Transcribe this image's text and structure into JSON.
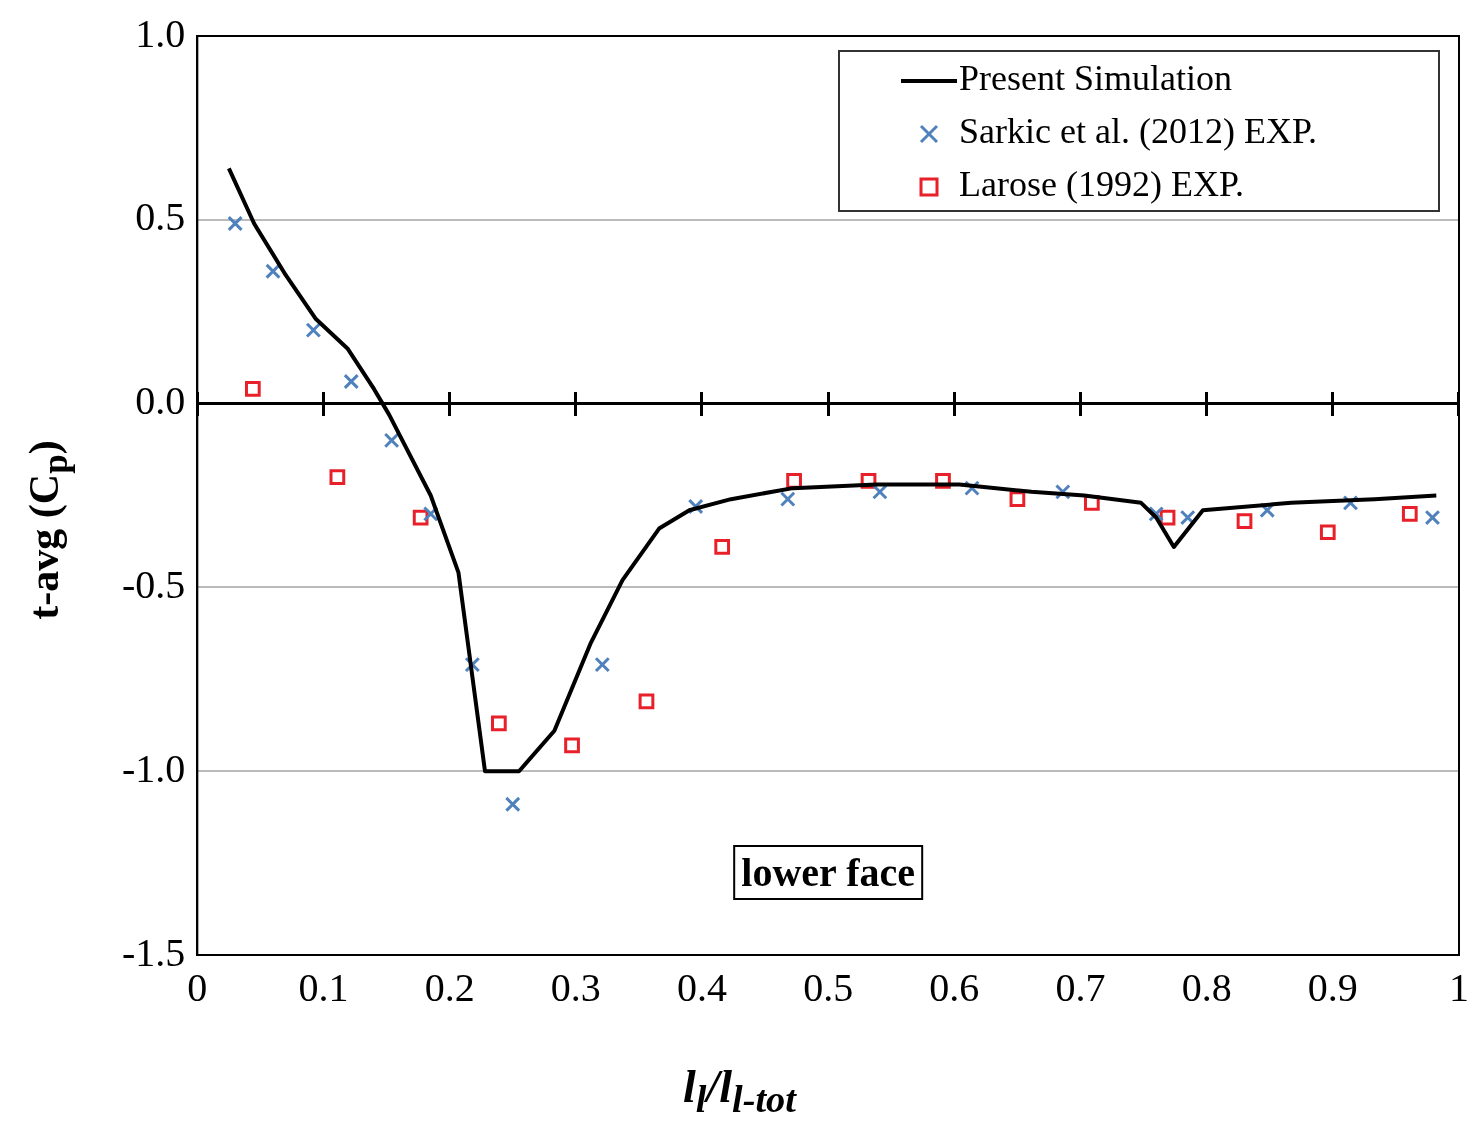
{
  "chart_data": {
    "type": "line",
    "xlabel": "l$_{l}$/l$_{l-tot}$",
    "ylabel": "t-avg (C$_{p}$)",
    "xlim": [
      0,
      1
    ],
    "xticks": [
      0,
      0.1,
      0.2,
      0.3,
      0.4,
      0.5,
      0.6,
      0.7,
      0.8,
      0.9,
      1
    ],
    "ylim": [
      -1.5,
      1
    ],
    "yticks": [
      {
        "value": -1.5,
        "label": "-1.5"
      },
      {
        "value": -1,
        "label": "-1.0"
      },
      {
        "value": -0.5,
        "label": "-0.5"
      },
      {
        "value": 0,
        "label": "0.0"
      },
      {
        "value": 0.5,
        "label": "0.5"
      },
      {
        "value": 1,
        "label": "1.0"
      }
    ],
    "grid": "y",
    "legend": "top right",
    "ref_lines": [
      {
        "axis": "y",
        "value": 0,
        "color": "#000000"
      }
    ],
    "annotations": [
      "lower face"
    ],
    "series": [
      {
        "name": "Present Simulation",
        "type": "line",
        "color": "#000000",
        "marker": "none",
        "line_style": "solid",
        "x": [
          0.025,
          0.045,
          0.07,
          0.094,
          0.119,
          0.14,
          0.152,
          0.185,
          0.207,
          0.228,
          0.255,
          0.283,
          0.312,
          0.337,
          0.366,
          0.39,
          0.423,
          0.472,
          0.538,
          0.604,
          0.661,
          0.703,
          0.748,
          0.76,
          0.774,
          0.797,
          0.867,
          0.933,
          0.982
        ],
        "values": [
          0.64,
          0.49,
          0.35,
          0.23,
          0.15,
          0.04,
          -0.03,
          -0.25,
          -0.46,
          -1.0,
          -1.0,
          -0.89,
          -0.65,
          -0.48,
          -0.34,
          -0.29,
          -0.26,
          -0.23,
          -0.22,
          -0.22,
          -0.24,
          -0.25,
          -0.27,
          -0.31,
          -0.39,
          -0.29,
          -0.27,
          -0.26,
          -0.25
        ]
      },
      {
        "name": "Sarkic et al. (2012) EXP.",
        "type": "scatter",
        "color": "#4f81bd",
        "marker": "cross",
        "x": [
          0.03,
          0.06,
          0.092,
          0.122,
          0.154,
          0.185,
          0.218,
          0.25,
          0.321,
          0.395,
          0.468,
          0.541,
          0.614,
          0.686,
          0.76,
          0.785,
          0.848,
          0.914,
          0.979
        ],
        "values": [
          0.49,
          0.36,
          0.2,
          0.06,
          -0.1,
          -0.3,
          -0.71,
          -1.09,
          -0.71,
          -0.28,
          -0.26,
          -0.24,
          -0.23,
          -0.24,
          -0.3,
          -0.31,
          -0.29,
          -0.27,
          -0.31
        ]
      },
      {
        "name": "Larose (1992) EXP.",
        "type": "scatter",
        "color": "#e8202a",
        "marker": "square",
        "x": [
          0.044,
          0.111,
          0.177,
          0.239,
          0.297,
          0.356,
          0.416,
          0.473,
          0.532,
          0.591,
          0.65,
          0.709,
          0.769,
          0.83,
          0.896,
          0.961
        ],
        "values": [
          0.04,
          -0.2,
          -0.31,
          -0.87,
          -0.93,
          -0.81,
          -0.39,
          -0.21,
          -0.21,
          -0.21,
          -0.26,
          -0.27,
          -0.31,
          -0.32,
          -0.35,
          -0.3
        ]
      }
    ]
  }
}
